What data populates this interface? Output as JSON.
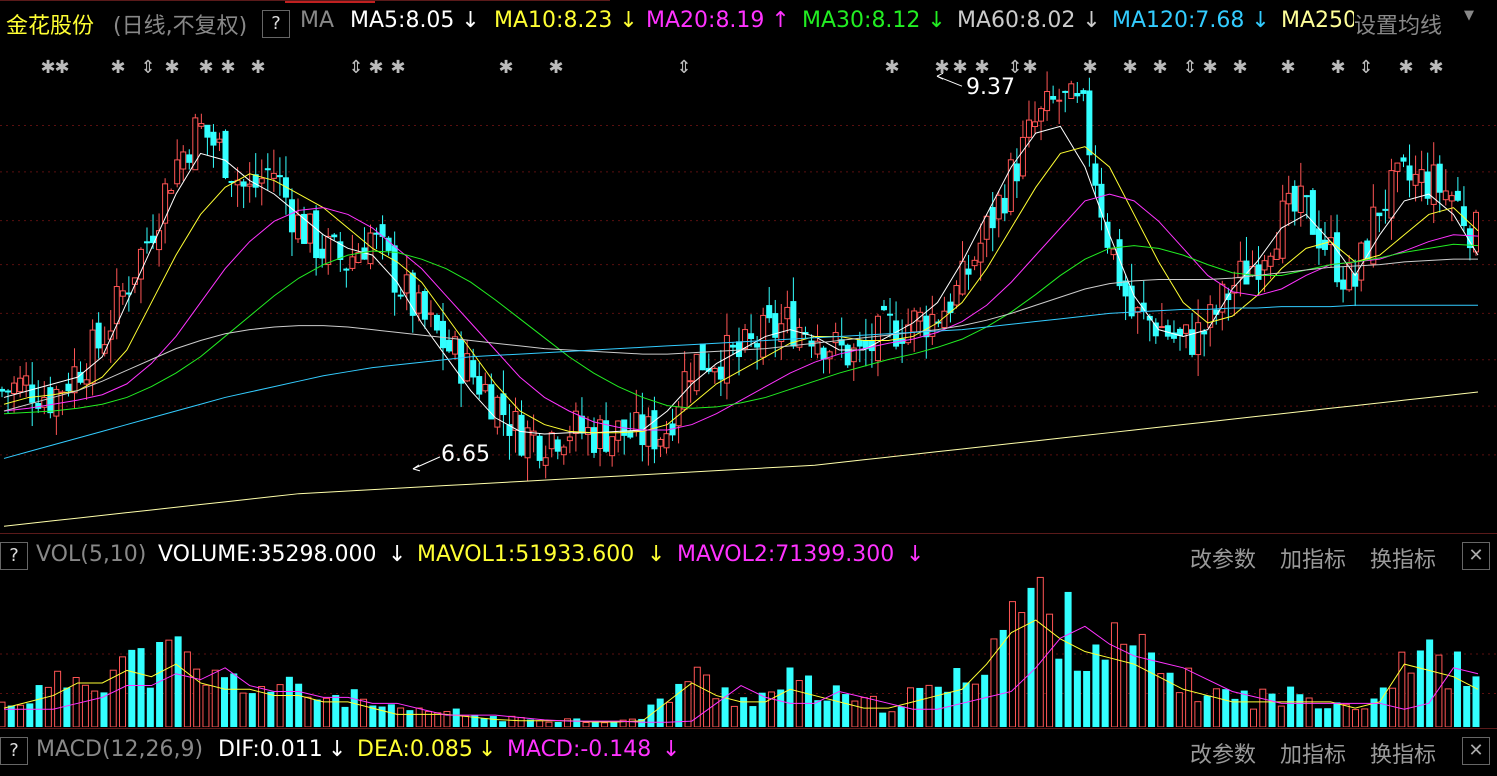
{
  "header": {
    "stock_name": "金花股份",
    "period": "(日线,不复权)",
    "help": "?",
    "indicator": "MA",
    "ma_items": [
      {
        "label": "MA5:8.05",
        "arrow": "↓",
        "color": "#ffffff"
      },
      {
        "label": "MA10:8.23",
        "arrow": "↓",
        "color": "#ffff33"
      },
      {
        "label": "MA20:8.19",
        "arrow": "↑",
        "color": "#ff33ff"
      },
      {
        "label": "MA30:8.12",
        "arrow": "↓",
        "color": "#22ee22"
      },
      {
        "label": "MA60:8.02",
        "arrow": "↓",
        "color": "#cccccc"
      },
      {
        "label": "MA120:7.68",
        "arrow": "↓",
        "color": "#33ccff"
      },
      {
        "label": "MA250",
        "arrow": "",
        "color": "#ffff99"
      }
    ],
    "settings": "设置均线",
    "settings_icon": "caret-down-icon"
  },
  "price_annotations": {
    "high": "9.37",
    "low": "6.65"
  },
  "vol_panel": {
    "help": "?",
    "name": "VOL(5,10)",
    "volume": "VOLUME:35298.000",
    "volume_arrow": "↓",
    "mavol1": "MAVOL1:51933.600",
    "mavol1_arrow": "↓",
    "mavol2": "MAVOL2:71399.300",
    "mavol2_arrow": "↓",
    "btn_params": "改参数",
    "btn_add": "加指标",
    "btn_switch": "换指标",
    "close": "✕"
  },
  "macd_panel": {
    "help": "?",
    "name": "MACD(12,26,9)",
    "dif": "DIF:0.011",
    "dif_arrow": "↓",
    "dea": "DEA:0.085",
    "dea_arrow": "↓",
    "macd": "MACD:-0.148",
    "macd_arrow": "↓",
    "btn_params": "改参数",
    "btn_add": "加指标",
    "btn_switch": "换指标",
    "close": "✕"
  },
  "colors": {
    "up": "#ff5555",
    "down": "#33ffff",
    "ma5": "#ffffff",
    "ma10": "#ffff33",
    "ma20": "#ff33ff",
    "ma30": "#22ee22",
    "ma60": "#cccccc",
    "ma120": "#33ccff",
    "ma250": "#ffffaa",
    "grid": "#5a0f0f"
  },
  "chart_data": {
    "type": "candlestick",
    "title": "金花股份 (日线,不复权)",
    "ylim": [
      6.0,
      9.6
    ],
    "annotations": [
      {
        "label": "9.37",
        "value": 9.37
      },
      {
        "label": "6.65",
        "value": 6.65
      }
    ],
    "price_path": [
      7.05,
      7.1,
      7.0,
      7.2,
      7.4,
      7.8,
      8.2,
      8.7,
      9.0,
      8.8,
      8.5,
      8.7,
      8.3,
      8.1,
      8.0,
      8.2,
      7.9,
      7.6,
      7.4,
      7.2,
      7.0,
      6.75,
      6.7,
      6.78,
      6.73,
      6.75,
      6.72,
      6.75,
      7.25,
      7.3,
      7.3,
      7.45,
      7.55,
      7.5,
      7.35,
      7.3,
      7.5,
      7.55,
      7.6,
      7.8,
      8.2,
      8.6,
      9.0,
      9.2,
      9.1,
      8.2,
      7.6,
      7.55,
      7.4,
      7.5,
      7.8,
      8.0,
      8.3,
      8.4,
      8.1,
      7.8,
      8.4,
      8.6,
      8.6,
      8.5,
      8.2
    ],
    "ma_lines": {
      "MA5": [
        7.0,
        7.05,
        7.1,
        7.15,
        7.3,
        7.7,
        8.1,
        8.5,
        8.8,
        8.75,
        8.6,
        8.5,
        8.35,
        8.2,
        8.1,
        8.05,
        7.85,
        7.55,
        7.3,
        7.05,
        6.85,
        6.75,
        6.73,
        6.74,
        6.74,
        6.75,
        6.76,
        6.9,
        7.1,
        7.25,
        7.35,
        7.45,
        7.5,
        7.45,
        7.35,
        7.35,
        7.45,
        7.55,
        7.7,
        8.0,
        8.35,
        8.7,
        8.95,
        9.0,
        8.7,
        8.2,
        7.75,
        7.5,
        7.45,
        7.5,
        7.8,
        8.0,
        8.25,
        8.35,
        8.15,
        7.9,
        8.2,
        8.45,
        8.5,
        8.35,
        8.05
      ],
      "MA10": [
        6.95,
        7.0,
        7.02,
        7.05,
        7.15,
        7.35,
        7.7,
        8.05,
        8.35,
        8.55,
        8.65,
        8.6,
        8.5,
        8.4,
        8.25,
        8.1,
        8.0,
        7.85,
        7.6,
        7.35,
        7.1,
        6.9,
        6.8,
        6.75,
        6.74,
        6.74,
        6.75,
        6.8,
        6.95,
        7.1,
        7.2,
        7.3,
        7.4,
        7.45,
        7.45,
        7.42,
        7.42,
        7.45,
        7.55,
        7.7,
        7.95,
        8.25,
        8.55,
        8.8,
        8.85,
        8.7,
        8.35,
        8.0,
        7.7,
        7.55,
        7.6,
        7.75,
        7.95,
        8.1,
        8.15,
        8.0,
        8.05,
        8.2,
        8.35,
        8.4,
        8.23
      ],
      "MA20": [
        6.9,
        6.92,
        6.95,
        6.98,
        7.02,
        7.1,
        7.25,
        7.45,
        7.7,
        7.95,
        8.15,
        8.3,
        8.38,
        8.4,
        8.35,
        8.25,
        8.1,
        7.95,
        7.75,
        7.55,
        7.35,
        7.15,
        7.0,
        6.9,
        6.82,
        6.78,
        6.76,
        6.76,
        6.8,
        6.88,
        6.98,
        7.08,
        7.18,
        7.26,
        7.32,
        7.36,
        7.4,
        7.43,
        7.48,
        7.56,
        7.68,
        7.85,
        8.05,
        8.25,
        8.45,
        8.5,
        8.45,
        8.3,
        8.1,
        7.9,
        7.78,
        7.75,
        7.8,
        7.9,
        7.98,
        8.0,
        8.02,
        8.08,
        8.15,
        8.2,
        8.19
      ],
      "MA30": [
        6.88,
        6.89,
        6.9,
        6.92,
        6.95,
        7.0,
        7.08,
        7.18,
        7.3,
        7.45,
        7.6,
        7.75,
        7.88,
        7.98,
        8.05,
        8.08,
        8.07,
        8.02,
        7.95,
        7.85,
        7.72,
        7.58,
        7.44,
        7.3,
        7.18,
        7.08,
        7.0,
        6.94,
        6.92,
        6.93,
        6.96,
        7.0,
        7.06,
        7.12,
        7.18,
        7.23,
        7.28,
        7.32,
        7.37,
        7.43,
        7.52,
        7.63,
        7.76,
        7.9,
        8.02,
        8.1,
        8.12,
        8.1,
        8.05,
        7.98,
        7.92,
        7.9,
        7.9,
        7.94,
        7.98,
        8.0,
        8.03,
        8.07,
        8.1,
        8.13,
        8.12
      ],
      "MA60": [
        6.9,
        6.95,
        7.0,
        7.05,
        7.12,
        7.2,
        7.28,
        7.36,
        7.42,
        7.47,
        7.5,
        7.52,
        7.53,
        7.53,
        7.52,
        7.5,
        7.48,
        7.46,
        7.44,
        7.42,
        7.4,
        7.38,
        7.36,
        7.35,
        7.34,
        7.33,
        7.32,
        7.32,
        7.33,
        7.34,
        7.35,
        7.36,
        7.38,
        7.4,
        7.42,
        7.44,
        7.46,
        7.48,
        7.5,
        7.53,
        7.57,
        7.62,
        7.68,
        7.74,
        7.8,
        7.84,
        7.86,
        7.87,
        7.87,
        7.87,
        7.88,
        7.9,
        7.92,
        7.94,
        7.96,
        7.97,
        7.98,
        8.0,
        8.01,
        8.02,
        8.02
      ],
      "MA120": [
        6.55,
        6.6,
        6.65,
        6.7,
        6.75,
        6.8,
        6.85,
        6.9,
        6.95,
        7.0,
        7.04,
        7.08,
        7.12,
        7.16,
        7.19,
        7.22,
        7.24,
        7.26,
        7.28,
        7.3,
        7.31,
        7.32,
        7.33,
        7.34,
        7.35,
        7.36,
        7.37,
        7.38,
        7.39,
        7.4,
        7.41,
        7.42,
        7.43,
        7.44,
        7.45,
        7.46,
        7.47,
        7.48,
        7.49,
        7.5,
        7.52,
        7.54,
        7.56,
        7.58,
        7.6,
        7.62,
        7.63,
        7.64,
        7.65,
        7.65,
        7.66,
        7.66,
        7.67,
        7.67,
        7.67,
        7.68,
        7.68,
        7.68,
        7.68,
        7.68,
        7.68
      ],
      "MA250": [
        6.05,
        6.07,
        6.09,
        6.11,
        6.13,
        6.15,
        6.17,
        6.19,
        6.21,
        6.23,
        6.25,
        6.27,
        6.29,
        6.3,
        6.31,
        6.32,
        6.33,
        6.34,
        6.35,
        6.36,
        6.37,
        6.38,
        6.39,
        6.4,
        6.41,
        6.42,
        6.43,
        6.44,
        6.45,
        6.46,
        6.47,
        6.48,
        6.49,
        6.5,
        6.52,
        6.54,
        6.56,
        6.58,
        6.6,
        6.62,
        6.64,
        6.66,
        6.68,
        6.7,
        6.72,
        6.74,
        6.76,
        6.78,
        6.8,
        6.82,
        6.84,
        6.86,
        6.88,
        6.9,
        6.92,
        6.94,
        6.96,
        6.98,
        7.0,
        7.02,
        7.04
      ]
    },
    "volume_path": [
      0.15,
      0.2,
      0.25,
      0.35,
      0.35,
      0.45,
      0.4,
      0.5,
      0.35,
      0.3,
      0.3,
      0.25,
      0.25,
      0.2,
      0.2,
      0.15,
      0.1,
      0.1,
      0.1,
      0.08,
      0.06,
      0.05,
      0.05,
      0.05,
      0.04,
      0.04,
      0.05,
      0.2,
      0.35,
      0.25,
      0.2,
      0.2,
      0.3,
      0.25,
      0.2,
      0.15,
      0.15,
      0.2,
      0.25,
      0.3,
      0.5,
      0.75,
      0.85,
      0.7,
      0.6,
      0.55,
      0.5,
      0.4,
      0.3,
      0.25,
      0.2,
      0.2,
      0.2,
      0.2,
      0.2,
      0.15,
      0.2,
      0.5,
      0.45,
      0.4,
      0.3
    ],
    "vol_ylim": [
      0,
      1
    ]
  }
}
